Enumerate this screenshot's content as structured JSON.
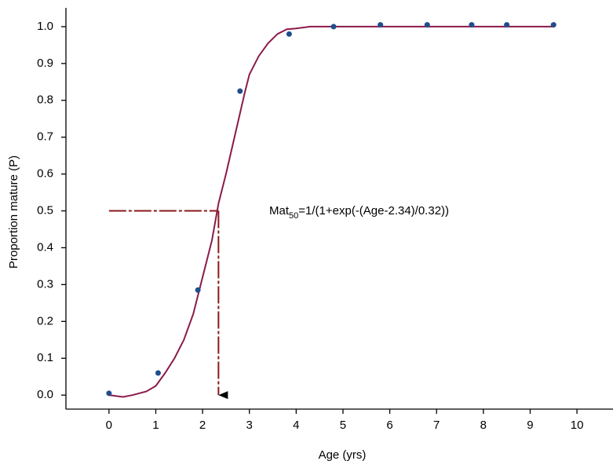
{
  "chart_data": {
    "type": "scatter",
    "x_label": "Age (yrs)",
    "y_label": "Proportion mature (P)",
    "xlim": [
      -0.92,
      10.77
    ],
    "ylim": [
      -0.038,
      1.051
    ],
    "xticks": [
      0,
      1,
      2,
      3,
      4,
      5,
      6,
      7,
      8,
      9,
      10
    ],
    "yticks": [
      {
        "value": 0,
        "label": "0.0"
      },
      0.1,
      0.2,
      0.3,
      0.4,
      0.5,
      0.6,
      0.7,
      0.8,
      0.9,
      {
        "value": 1,
        "label": "1.0"
      }
    ],
    "points": {
      "color": "#1f4e8c",
      "x": [
        0,
        1.05,
        1.9,
        2.8,
        3.85,
        4.8,
        5.8,
        6.8,
        7.75,
        8.5,
        9.5
      ],
      "y": [
        0.005,
        0.06,
        0.285,
        0.825,
        0.98,
        1.0,
        1.005,
        1.005,
        1.005,
        1.005,
        1.005
      ]
    },
    "curve": {
      "color": "#8b1a4a",
      "x": [
        0,
        0.3,
        0.5,
        0.8,
        1.0,
        1.2,
        1.4,
        1.6,
        1.8,
        2.0,
        2.2,
        2.34,
        2.5,
        2.7,
        2.9,
        3.0,
        3.2,
        3.4,
        3.6,
        3.8,
        4.0,
        4.3,
        5,
        6,
        7,
        8,
        9,
        9.5
      ],
      "y": [
        0,
        -0.005,
        0,
        0.01,
        0.025,
        0.06,
        0.1,
        0.15,
        0.22,
        0.32,
        0.42,
        0.52,
        0.6,
        0.71,
        0.82,
        0.87,
        0.92,
        0.955,
        0.98,
        0.993,
        0.995,
        1.0,
        1.0,
        1.0,
        1.0,
        1.0,
        1.0,
        1.0
      ]
    },
    "reference": {
      "x": 2.34,
      "y": 0.5,
      "x_start": 0,
      "y_end": 0,
      "color": "#8b1a1a"
    },
    "annotation": {
      "text": "Mat",
      "subscript": "50",
      "rest": "=1/(1+exp(-(Age-2.34)/0.32))"
    }
  }
}
